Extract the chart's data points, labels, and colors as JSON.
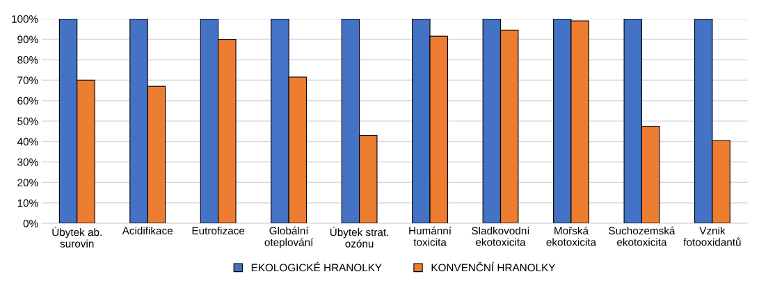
{
  "chart_data": {
    "type": "bar",
    "categories": [
      "Úbytek ab.\nsurovin",
      "Acidifikace",
      "Eutrofizace",
      "Globální\noteplování",
      "Úbytek strat.\nozónu",
      "Humánní\ntoxicita",
      "Sladkovodní\nekotoxicita",
      "Mořská\nekotoxicita",
      "Suchozemská\nekotoxicita",
      "Vznik\nfotooxidantů"
    ],
    "series": [
      {
        "name": "EKOLOGICKÉ HRANOLKY",
        "color": "#4472c4",
        "values": [
          100,
          100,
          100,
          100,
          100,
          100,
          100,
          100,
          100,
          100
        ]
      },
      {
        "name": "KONVENČNÍ HRANOLKY",
        "color": "#ed7d31",
        "values": [
          70,
          67,
          90,
          71.5,
          43,
          91.5,
          94.5,
          99,
          47.5,
          40.5
        ]
      }
    ],
    "ylim": [
      0,
      100
    ],
    "yticks": [
      {
        "value": 0,
        "label": "0%"
      },
      {
        "value": 10,
        "label": "10%"
      },
      {
        "value": 20,
        "label": "20%"
      },
      {
        "value": 30,
        "label": "30%"
      },
      {
        "value": 40,
        "label": "40%"
      },
      {
        "value": 50,
        "label": "50%"
      },
      {
        "value": 60,
        "label": "60%"
      },
      {
        "value": 70,
        "label": "70%"
      },
      {
        "value": 80,
        "label": "80%"
      },
      {
        "value": 90,
        "label": "90%"
      },
      {
        "value": 100,
        "label": "100%"
      }
    ],
    "grid": "y",
    "legend": "bottom"
  }
}
